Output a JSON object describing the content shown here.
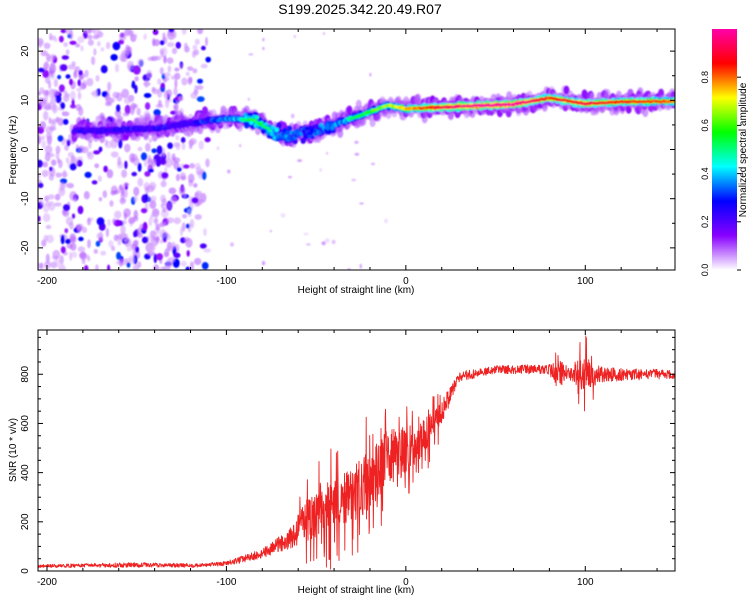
{
  "title": "S199.2025.342.20.49.R07",
  "chart_data": [
    {
      "type": "heatmap",
      "title": "S199.2025.342.20.49.R07",
      "xlabel": "Height of straight line (km)",
      "ylabel": "Frequency (Hz)",
      "xlim": [
        -205,
        150
      ],
      "ylim": [
        -24.5,
        24.5
      ],
      "xticks": [
        -200,
        -100,
        0,
        100
      ],
      "xticks_minor_step": 20,
      "yticks": [
        -20,
        -10,
        0,
        10,
        20
      ],
      "yticks_minor_step": 5,
      "grid": false,
      "colorbar": {
        "label": "Normalized spectral amplitude",
        "range": [
          0,
          1
        ],
        "ticks": [
          0.0,
          0.2,
          0.4,
          0.6,
          0.8
        ],
        "tick_labels": [
          "0.0",
          "0.2",
          "0.4",
          "0.6",
          "0.8"
        ],
        "colormap": [
          "#ffffff",
          "#8800ff",
          "#0000ff",
          "#00ffff",
          "#00ff00",
          "#ffff00",
          "#ff0000",
          "#ff00aa"
        ]
      },
      "ridge": {
        "description_points": [
          {
            "x": -180,
            "freq": 3.8,
            "amp": 0.28
          },
          {
            "x": -160,
            "freq": 4.0,
            "amp": 0.3
          },
          {
            "x": -140,
            "freq": 4.3,
            "amp": 0.3
          },
          {
            "x": -120,
            "freq": 5.3,
            "amp": 0.3
          },
          {
            "x": -100,
            "freq": 6.3,
            "amp": 0.45
          },
          {
            "x": -85,
            "freq": 6.0,
            "amp": 0.55
          },
          {
            "x": -75,
            "freq": 3.8,
            "amp": 0.5
          },
          {
            "x": -65,
            "freq": 2.5,
            "amp": 0.45
          },
          {
            "x": -55,
            "freq": 3.5,
            "amp": 0.4
          },
          {
            "x": -40,
            "freq": 5.0,
            "amp": 0.45
          },
          {
            "x": -25,
            "freq": 7.0,
            "amp": 0.55
          },
          {
            "x": -10,
            "freq": 9.0,
            "amp": 0.65
          },
          {
            "x": 0,
            "freq": 8.3,
            "amp": 0.75
          },
          {
            "x": 25,
            "freq": 8.7,
            "amp": 0.95
          },
          {
            "x": 60,
            "freq": 9.2,
            "amp": 1.0
          },
          {
            "x": 80,
            "freq": 10.5,
            "amp": 0.85
          },
          {
            "x": 100,
            "freq": 9.3,
            "amp": 0.9
          },
          {
            "x": 120,
            "freq": 9.7,
            "amp": 0.85
          },
          {
            "x": 150,
            "freq": 9.8,
            "amp": 0.8
          }
        ],
        "noise_region_x": [
          -205,
          -110
        ],
        "noise_amp": 0.35
      }
    },
    {
      "type": "line",
      "xlabel": "Height of straight line (km)",
      "ylabel": "SNR (10 * v/v)",
      "xlim": [
        -205,
        150
      ],
      "ylim": [
        0,
        980
      ],
      "xticks": [
        -200,
        -100,
        0,
        100
      ],
      "xticks_minor_step": 20,
      "yticks": [
        0,
        200,
        400,
        600,
        800
      ],
      "yticks_minor_step": 50,
      "color": "#ee2222",
      "series": [
        {
          "name": "SNR",
          "envelope_points": [
            {
              "x": -205,
              "y": 20,
              "spread": 12
            },
            {
              "x": -150,
              "y": 25,
              "spread": 20
            },
            {
              "x": -115,
              "y": 22,
              "spread": 15
            },
            {
              "x": -100,
              "y": 30,
              "spread": 20
            },
            {
              "x": -80,
              "y": 70,
              "spread": 40
            },
            {
              "x": -65,
              "y": 130,
              "spread": 80
            },
            {
              "x": -50,
              "y": 250,
              "spread": 220
            },
            {
              "x": -40,
              "y": 260,
              "spread": 230
            },
            {
              "x": -30,
              "y": 300,
              "spread": 230
            },
            {
              "x": -20,
              "y": 380,
              "spread": 250
            },
            {
              "x": -10,
              "y": 460,
              "spread": 230
            },
            {
              "x": 0,
              "y": 490,
              "spread": 200
            },
            {
              "x": 10,
              "y": 540,
              "spread": 150
            },
            {
              "x": 20,
              "y": 650,
              "spread": 100
            },
            {
              "x": 30,
              "y": 790,
              "spread": 40
            },
            {
              "x": 50,
              "y": 820,
              "spread": 35
            },
            {
              "x": 80,
              "y": 820,
              "spread": 40
            },
            {
              "x": 85,
              "y": 800,
              "spread": 130
            },
            {
              "x": 90,
              "y": 810,
              "spread": 50
            },
            {
              "x": 100,
              "y": 800,
              "spread": 150
            },
            {
              "x": 110,
              "y": 800,
              "spread": 60
            },
            {
              "x": 150,
              "y": 800,
              "spread": 35
            }
          ]
        }
      ]
    }
  ]
}
